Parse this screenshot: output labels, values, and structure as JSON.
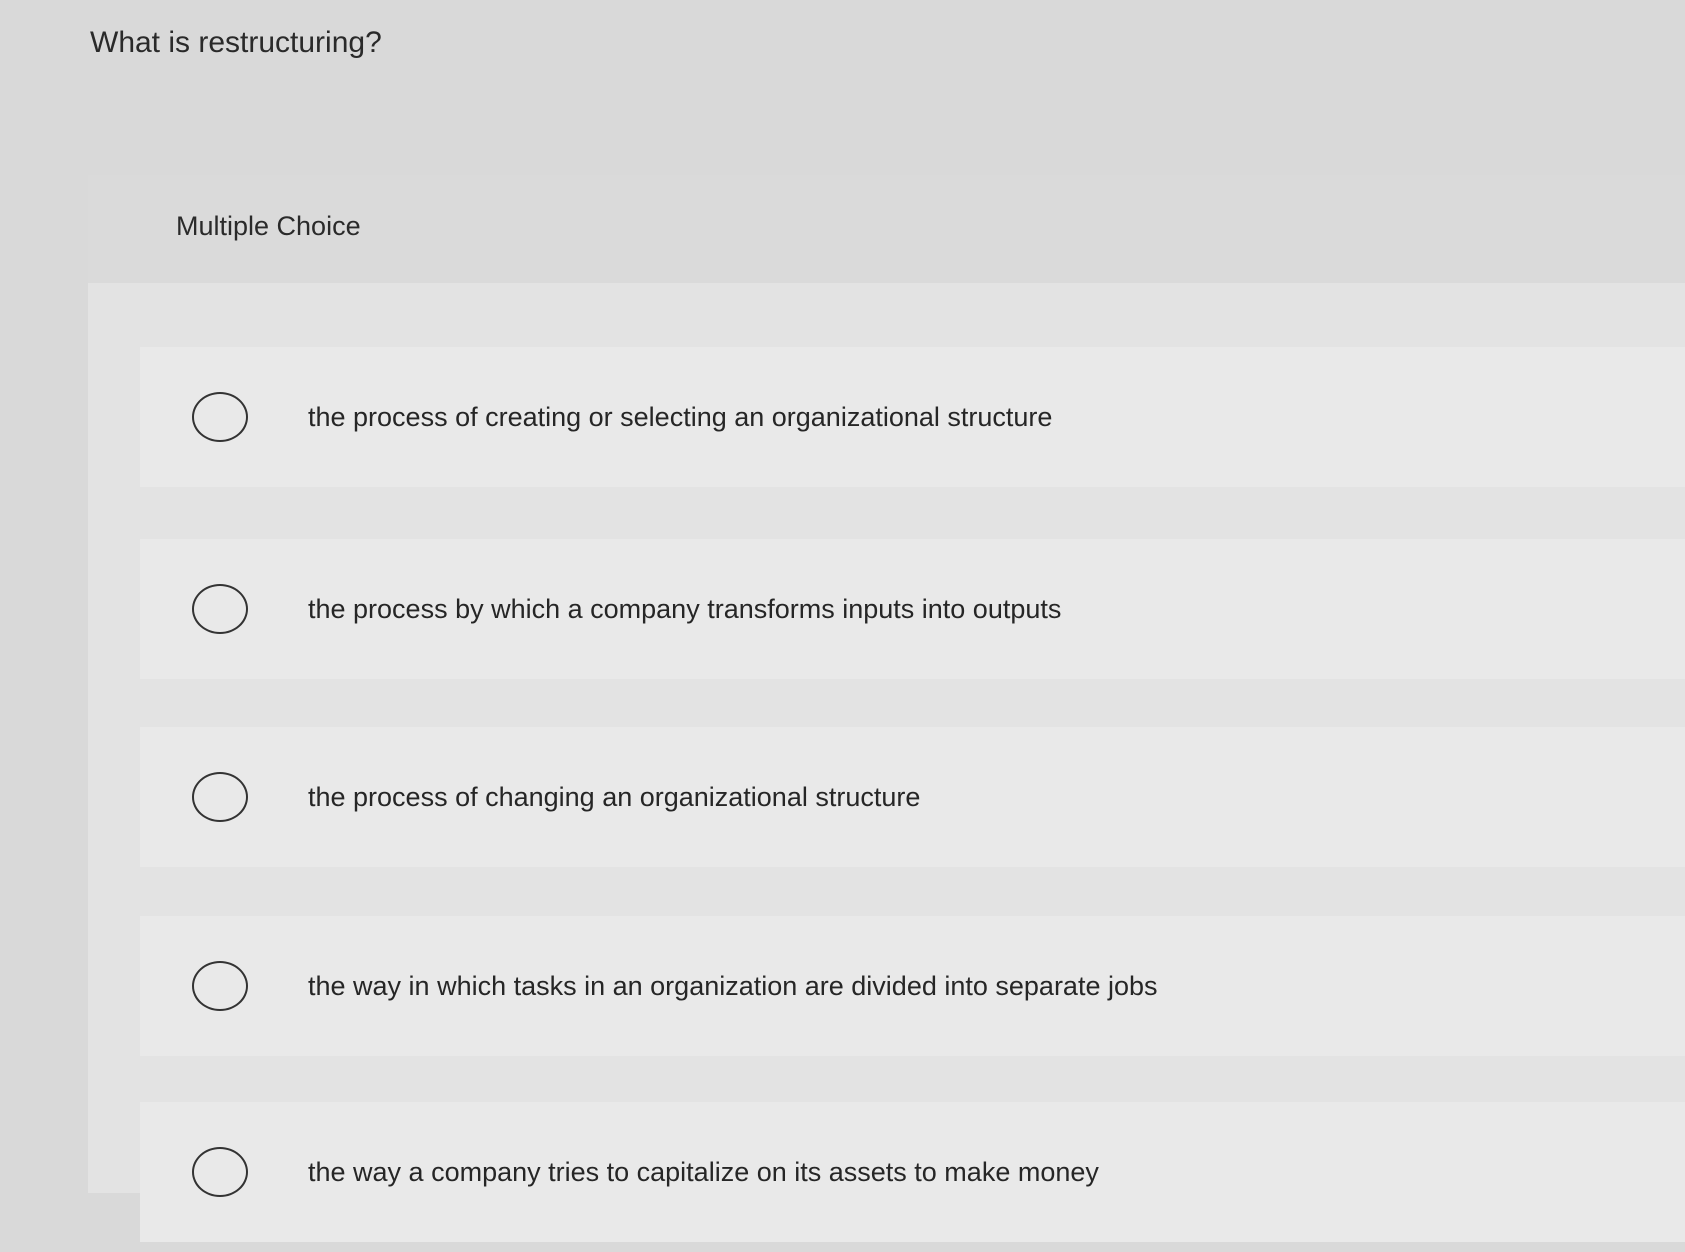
{
  "question": {
    "title": "What is restructuring?"
  },
  "panel": {
    "type_label": "Multiple Choice"
  },
  "options": [
    {
      "label": "the process of creating or selecting an organizational structure",
      "selected": false
    },
    {
      "label": "the process by which a company transforms inputs into outputs",
      "selected": false
    },
    {
      "label": "the process of changing an organizational structure",
      "selected": false
    },
    {
      "label": "the way in which tasks in an organization are divided into separate jobs",
      "selected": false
    },
    {
      "label": "the way a company tries to capitalize on its assets to make money",
      "selected": false
    }
  ]
}
